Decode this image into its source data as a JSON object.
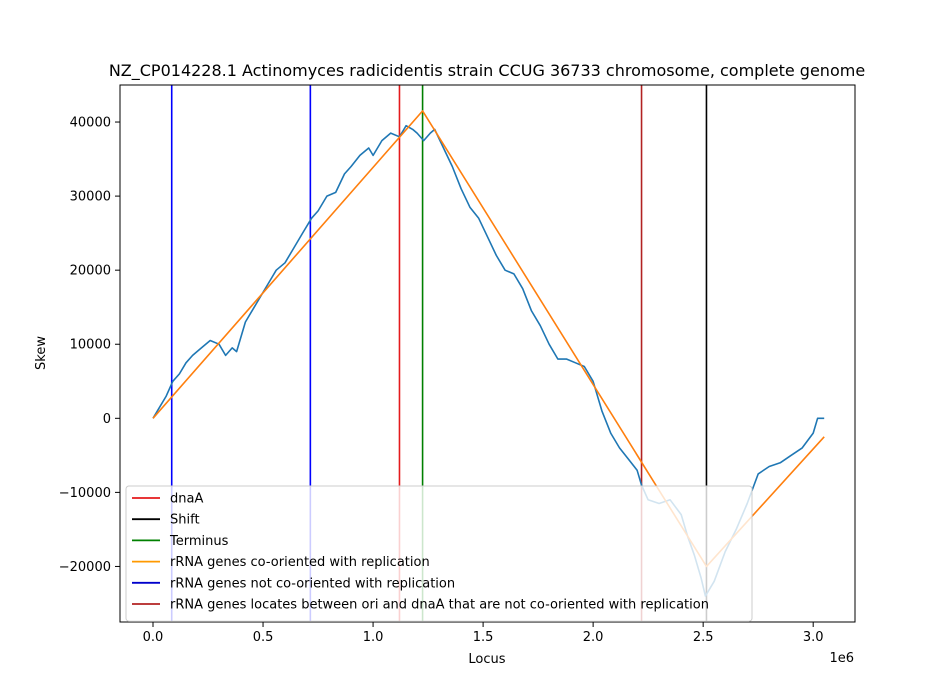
{
  "chart_data": {
    "type": "line",
    "title": "NZ_CP014228.1 Actinomyces radicidentis strain CCUG 36733 chromosome, complete genome",
    "xlabel": "Locus",
    "ylabel": "Skew",
    "x_offset_label": "1e6",
    "xlim": [
      -150000,
      3190000
    ],
    "ylim": [
      -27500,
      45000
    ],
    "x_ticks": [
      0,
      500000,
      1000000,
      1500000,
      2000000,
      2500000,
      3000000
    ],
    "x_tick_labels": [
      "0.0",
      "0.5",
      "1.0",
      "1.5",
      "2.0",
      "2.5",
      "3.0"
    ],
    "y_ticks": [
      -20000,
      -10000,
      0,
      10000,
      20000,
      30000,
      40000
    ],
    "y_tick_labels": [
      "−20000",
      "−10000",
      "0",
      "10000",
      "20000",
      "30000",
      "40000"
    ],
    "grid": false,
    "legend_position": "lower-left",
    "series": [
      {
        "name": "",
        "color": "#1f77b4",
        "kind": "line",
        "x": [
          0,
          30000,
          60000,
          90000,
          120000,
          150000,
          180000,
          220000,
          260000,
          300000,
          330000,
          360000,
          380000,
          420000,
          460000,
          500000,
          540000,
          560000,
          600000,
          640000,
          680000,
          720000,
          750000,
          790000,
          830000,
          870000,
          900000,
          940000,
          980000,
          1000000,
          1040000,
          1080000,
          1120000,
          1150000,
          1180000,
          1200000,
          1230000,
          1260000,
          1280000,
          1320000,
          1360000,
          1400000,
          1440000,
          1480000,
          1520000,
          1560000,
          1600000,
          1640000,
          1680000,
          1720000,
          1760000,
          1800000,
          1840000,
          1880000,
          1920000,
          1960000,
          2000000,
          2040000,
          2080000,
          2120000,
          2160000,
          2200000,
          2220000,
          2250000,
          2300000,
          2350000,
          2400000,
          2430000,
          2460000,
          2490000,
          2510000,
          2530000,
          2550000,
          2600000,
          2650000,
          2700000,
          2750000,
          2800000,
          2850000,
          2900000,
          2950000,
          3000000,
          3020000,
          3050000
        ],
        "y": [
          0,
          1500,
          3000,
          5000,
          6000,
          7500,
          8500,
          9500,
          10500,
          10000,
          8500,
          9500,
          9000,
          13000,
          15000,
          17000,
          19000,
          20000,
          21000,
          23000,
          25000,
          27000,
          28000,
          30000,
          30500,
          33000,
          34000,
          35500,
          36500,
          35500,
          37500,
          38500,
          38000,
          39500,
          39000,
          38500,
          37500,
          38500,
          39000,
          36500,
          34000,
          31000,
          28500,
          27000,
          24500,
          22000,
          20000,
          19500,
          17500,
          14500,
          12500,
          10000,
          8000,
          8000,
          7500,
          7000,
          5000,
          1000,
          -2000,
          -4000,
          -5500,
          -7000,
          -9000,
          -11000,
          -11500,
          -11000,
          -13000,
          -16000,
          -18500,
          -21500,
          -24000,
          -23000,
          -22000,
          -18000,
          -15000,
          -11500,
          -7500,
          -6500,
          -6000,
          -5000,
          -4000,
          -2000,
          0,
          0
        ]
      },
      {
        "name": "rRNA genes co-oriented with replication",
        "color": "#ff7f0e",
        "kind": "line",
        "x": [
          0,
          1225000,
          2515000,
          3050000
        ],
        "y": [
          0,
          41500,
          -20000,
          -2500
        ]
      }
    ],
    "vlines": [
      {
        "name": "dnaA",
        "x": 1120000,
        "color": "#e41a1c"
      },
      {
        "name": "Shift",
        "x": 2515000,
        "color": "#000000"
      },
      {
        "name": "Terminus",
        "x": 1225000,
        "color": "#008000"
      },
      {
        "name": "rRNA genes not co-oriented with replication",
        "x": 85000,
        "color": "#0000ff"
      },
      {
        "name": "rRNA genes not co-oriented with replication",
        "x": 715000,
        "color": "#0000ff"
      },
      {
        "name": "rRNA genes locates between ori and dnaA that are not co-oriented with replication",
        "x": 2220000,
        "color": "#b22222"
      }
    ],
    "legend": [
      {
        "label": "dnaA",
        "color": "#e41a1c"
      },
      {
        "label": "Shift",
        "color": "#000000"
      },
      {
        "label": "Terminus",
        "color": "#008000"
      },
      {
        "label": "rRNA genes co-oriented with replication",
        "color": "#ff9900"
      },
      {
        "label": "rRNA genes not co-oriented with replication",
        "color": "#0000cc"
      },
      {
        "label": "rRNA genes locates between ori and dnaA that are not co-oriented with replication",
        "color": "#b22222"
      }
    ]
  }
}
